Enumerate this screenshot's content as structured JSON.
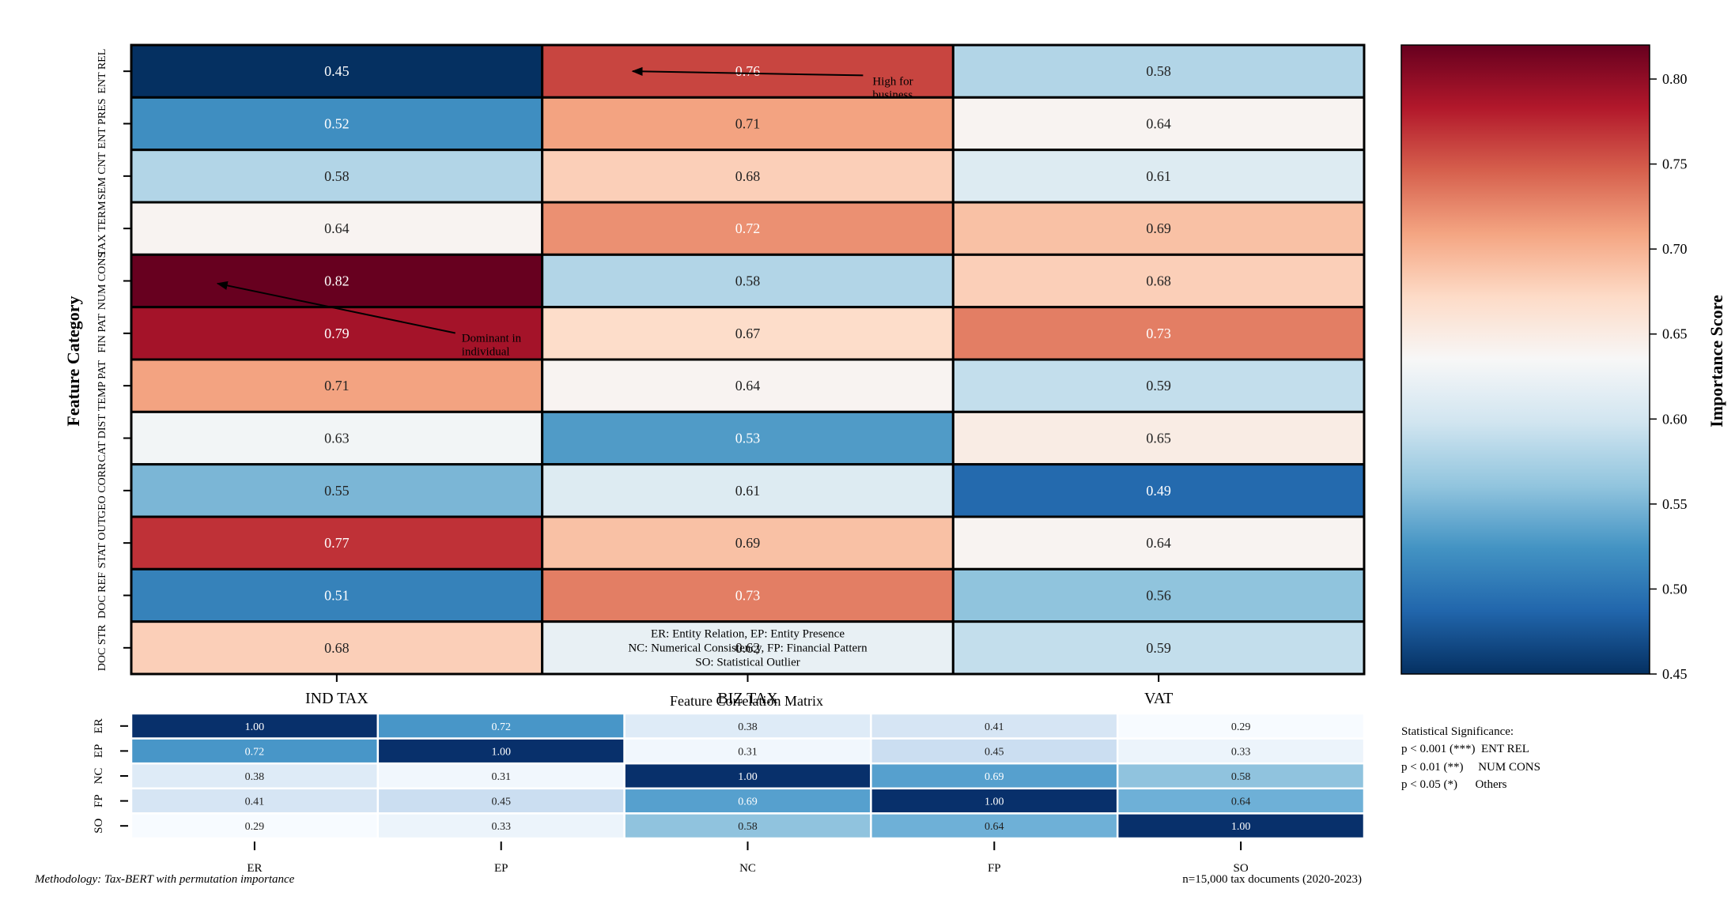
{
  "chart_data": [
    {
      "type": "heatmap",
      "ylabel": "Feature Category",
      "columns": [
        "IND TAX",
        "BIZ TAX",
        "VAT"
      ],
      "rows": [
        "ENT REL",
        "ENT PRES",
        "SEM CNT",
        "TAX TERM",
        "NUM CONS",
        "FIN PAT",
        "TEMP PAT",
        "CAT DIST",
        "GEO CORR",
        "STAT OUT",
        "DOC REF",
        "DOC STR"
      ],
      "values": [
        [
          0.45,
          0.76,
          0.58
        ],
        [
          0.52,
          0.71,
          0.64
        ],
        [
          0.58,
          0.68,
          0.61
        ],
        [
          0.64,
          0.72,
          0.69
        ],
        [
          0.82,
          0.58,
          0.68
        ],
        [
          0.79,
          0.67,
          0.73
        ],
        [
          0.71,
          0.64,
          0.59
        ],
        [
          0.63,
          0.53,
          0.65
        ],
        [
          0.55,
          0.61,
          0.49
        ],
        [
          0.77,
          0.69,
          0.64
        ],
        [
          0.51,
          0.73,
          0.56
        ],
        [
          0.68,
          0.62,
          0.59
        ]
      ],
      "colorbar": {
        "label": "Importance Score",
        "min": 0.45,
        "max": 0.82,
        "ticks": [
          "0.45",
          "0.50",
          "0.55",
          "0.60",
          "0.65",
          "0.70",
          "0.75",
          "0.80"
        ]
      },
      "annotations": [
        {
          "row": 0,
          "col": 1,
          "text": [
            "High for",
            "business"
          ]
        },
        {
          "row": 4,
          "col": 0,
          "text": [
            "Dominant in",
            "individual"
          ]
        }
      ],
      "legend_box": [
        "ER: Entity Relation, EP: Entity Presence",
        "NC: Numerical Consistency, FP: Financial Pattern",
        "SO: Statistical Outlier"
      ]
    },
    {
      "type": "heatmap",
      "title": "Feature Correlation Matrix",
      "labels": [
        "ER",
        "EP",
        "NC",
        "FP",
        "SO"
      ],
      "values": [
        [
          1.0,
          0.72,
          0.38,
          0.41,
          0.29
        ],
        [
          0.72,
          1.0,
          0.31,
          0.45,
          0.33
        ],
        [
          0.38,
          0.31,
          1.0,
          0.69,
          0.58
        ],
        [
          0.41,
          0.45,
          0.69,
          1.0,
          0.64
        ],
        [
          0.29,
          0.33,
          0.58,
          0.64,
          1.0
        ]
      ]
    }
  ],
  "significance": {
    "title": "Statistical Significance:",
    "lines": [
      "p < 0.001 (***)  ENT REL",
      "p < 0.01 (**)     NUM CONS",
      "p < 0.05 (*)      Others"
    ]
  },
  "footer": {
    "left": "Methodology: Tax-BERT with permutation importance",
    "right": "n=15,000 tax documents (2020-2023)"
  },
  "colors": {
    "grid": "#000000",
    "corr_grid": "#ffffff"
  }
}
